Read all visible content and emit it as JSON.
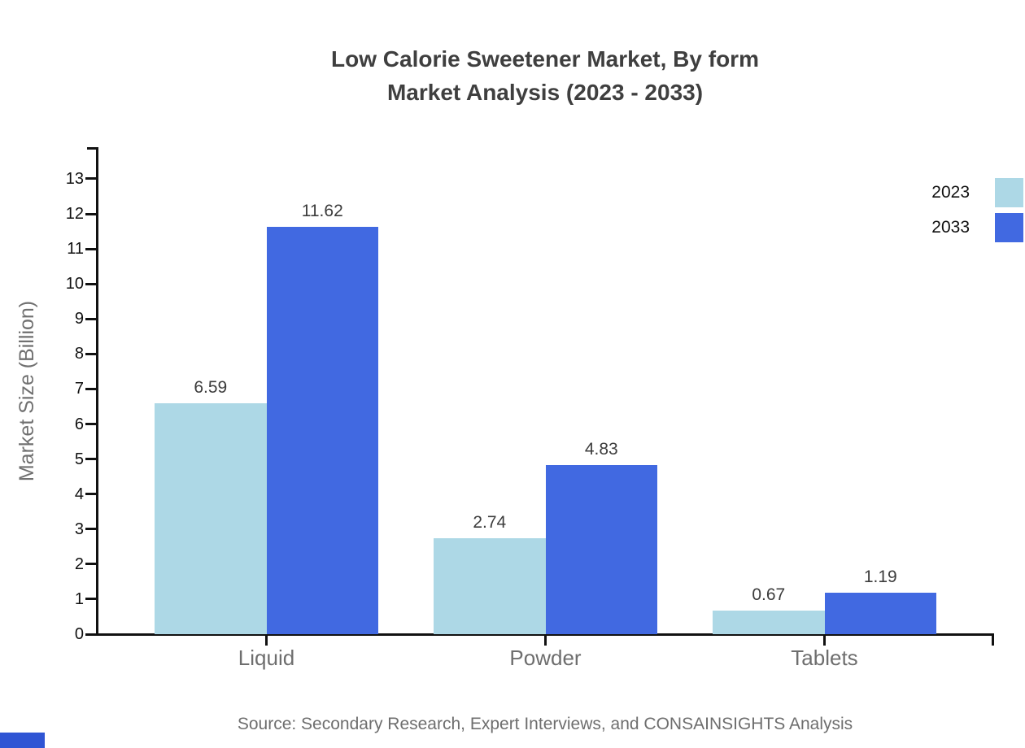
{
  "title": {
    "line1": "Low Calorie Sweetener Market, By form",
    "line2": "Market Analysis (2023 - 2033)"
  },
  "source": "Source: Secondary Research, Expert Interviews, and CONSAINSIGHTS Analysis",
  "chart_data": {
    "type": "bar",
    "title": "Low Calorie Sweetener Market, By form Market Analysis (2023 - 2033)",
    "categories": [
      "Liquid",
      "Powder",
      "Tablets"
    ],
    "series": [
      {
        "name": "2023",
        "color": "#ADD8E6",
        "values": [
          6.59,
          2.74,
          0.67
        ]
      },
      {
        "name": "2033",
        "color": "#4169E1",
        "values": [
          11.62,
          4.83,
          1.19
        ]
      }
    ],
    "value_labels": [
      "6.59",
      "2.74",
      "0.67",
      "11.62",
      "4.83",
      "1.19"
    ],
    "xlabel": "",
    "ylabel": "Market Size (Billion)",
    "ylim": [
      0,
      14
    ],
    "yticks": [
      0,
      1,
      2,
      3,
      4,
      5,
      6,
      7,
      8,
      9,
      10,
      11,
      12,
      13
    ],
    "grid": false,
    "legend_position": "top-right",
    "legend_entries": [
      "2023",
      "2033"
    ]
  },
  "colors": {
    "series_2023": "#ADD8E6",
    "series_2033": "#4169E1",
    "axis": "#111111",
    "title_text": "#3f3f3f",
    "muted_text": "#6e6e6e",
    "watermark_blue": "#2f55d4"
  }
}
